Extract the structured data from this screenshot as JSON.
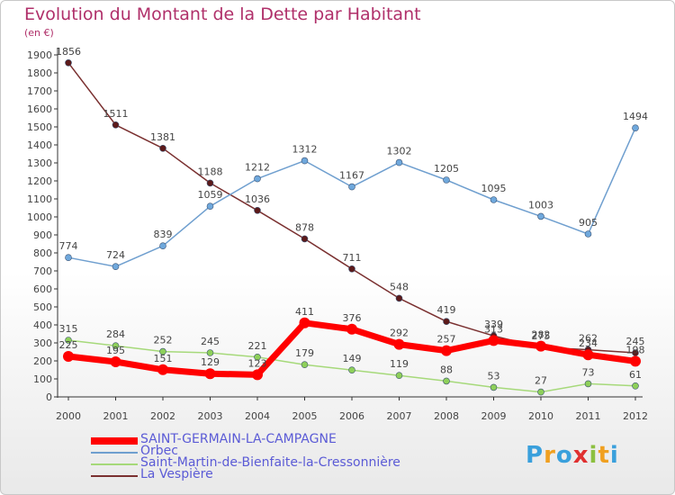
{
  "title": "Evolution du Montant de la Dette par Habitant",
  "subtitle": "(en €)",
  "logo_text": "Proxiti",
  "chart_data": {
    "type": "line",
    "title": "Evolution du Montant de la Dette par Habitant",
    "subtitle": "(en €)",
    "xlabel": "",
    "ylabel": "",
    "x": [
      "2000",
      "2001",
      "2002",
      "2003",
      "2004",
      "2005",
      "2006",
      "2007",
      "2008",
      "2009",
      "2010",
      "2011",
      "2012"
    ],
    "ylim": [
      0,
      1900
    ],
    "ytick_step": 100,
    "grid": false,
    "legend_position": "bottom-left",
    "series": [
      {
        "name": "SAINT-GERMAIN-LA-CAMPAGNE",
        "color": "#ff0000",
        "marker_color": "#ff0000",
        "values": [
          225,
          195,
          151,
          129,
          123,
          411,
          376,
          292,
          257,
          313,
          282,
          234,
          198
        ]
      },
      {
        "name": "Orbec",
        "color": "#6f9fcf",
        "marker_color": "#6fa8dc",
        "values": [
          774,
          724,
          839,
          1059,
          1212,
          1312,
          1167,
          1302,
          1205,
          1095,
          1003,
          905,
          1494
        ]
      },
      {
        "name": "Saint-Martin-de-Bienfaite-la-Cressonnière",
        "color": "#a6d97a",
        "marker_color": "#8ed05a",
        "values": [
          315,
          284,
          252,
          245,
          221,
          179,
          149,
          119,
          88,
          53,
          27,
          73,
          61
        ]
      },
      {
        "name": "La Vespière",
        "color": "#7a3030",
        "marker_color": "#5c1a1a",
        "values": [
          1856,
          1511,
          1381,
          1188,
          1036,
          878,
          711,
          548,
          419,
          339,
          275,
          262,
          245
        ]
      }
    ]
  }
}
